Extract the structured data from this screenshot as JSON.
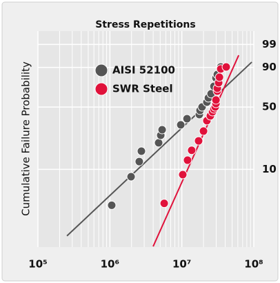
{
  "chart_data": {
    "type": "scatter",
    "title": "Stress Repetitions",
    "y_label": "Cumulative Failure Probability",
    "x_scale": "log",
    "y_scale": "weibull",
    "xlim": [
      100000,
      100000000
    ],
    "xticks": [
      {
        "value": 100000,
        "label": "10⁵"
      },
      {
        "value": 1000000,
        "label": "10⁶"
      },
      {
        "value": 10000000,
        "label": "10⁷"
      },
      {
        "value": 100000000,
        "label": "10⁸"
      }
    ],
    "ylim": [
      1,
      99.9
    ],
    "yticks": [
      10,
      50,
      90,
      99
    ],
    "grid": true,
    "legend": "upper left",
    "series": [
      {
        "name": "AISI 52100",
        "color": "#555555",
        "x": [
          1060000,
          1970000,
          2560000,
          2740000,
          4760000,
          5090000,
          5320000,
          9660000,
          11800000,
          17500000,
          17900000,
          19100000,
          22300000,
          23400000,
          25500000,
          27900000,
          29800000,
          31100000,
          34700000
        ],
        "values": [
          3.5,
          8.1,
          12.5,
          16.7,
          21,
          25.6,
          29.5,
          33.3,
          38.6,
          42.5,
          46.6,
          50.1,
          55.3,
          59.9,
          64.5,
          72.8,
          81.2,
          84.4,
          90.3
        ],
        "fit": {
          "x": [
            253000,
            93800000
          ],
          "values": [
            1.4,
            93.3
          ]
        }
      },
      {
        "name": "SWR Steel",
        "color": "#e0123b",
        "x": [
          5690000,
          10300000,
          12000000,
          13700000,
          17100000,
          20000000,
          22300000,
          24900000,
          26700000,
          27900000,
          29100000,
          29800000,
          29800000,
          31100000,
          31100000,
          32500000,
          33300000,
          34700000,
          41400000
        ],
        "values": [
          3.7,
          8.6,
          13,
          17.1,
          22.1,
          28.5,
          36.8,
          41.2,
          45.2,
          48,
          50.1,
          53.8,
          57.6,
          67.5,
          70.6,
          76.5,
          81.9,
          88.9,
          90.3
        ],
        "fit": {
          "x": [
            3990000,
            61700000
          ],
          "values": [
            1.02,
            96.4
          ]
        }
      }
    ]
  }
}
